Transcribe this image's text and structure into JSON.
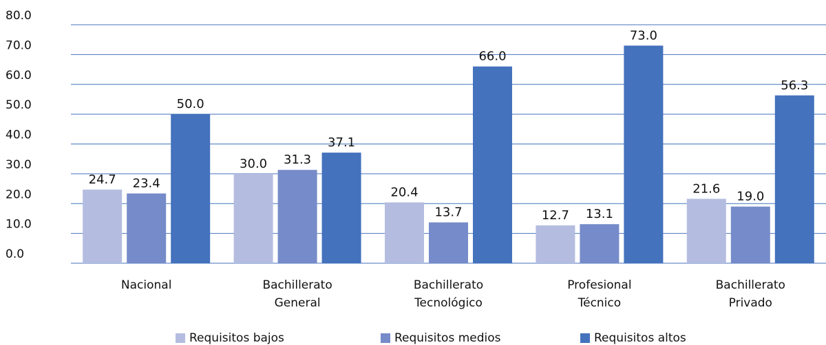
{
  "chart_data": {
    "type": "bar",
    "categories": [
      "Nacional",
      "Bachillerato General",
      "Bachillerato Tecnológico",
      "Profesional Técnico",
      "Bachillerato Privado"
    ],
    "series": [
      {
        "name": "Requisitos bajos",
        "color": "#b4bde0",
        "values": [
          24.7,
          30.0,
          20.4,
          12.7,
          21.6
        ],
        "value_labels": [
          "24.7",
          "30.0",
          "20.4",
          "12.7",
          "21.6"
        ]
      },
      {
        "name": "Requisitos medios",
        "color": "#768bc9",
        "values": [
          23.4,
          31.3,
          13.7,
          13.1,
          19.0
        ],
        "value_labels": [
          "23.4",
          "31.3",
          "13.7",
          "13.1",
          "19.0"
        ]
      },
      {
        "name": "Requisitos altos",
        "color": "#4472bd",
        "values": [
          50.0,
          37.1,
          66.0,
          73.0,
          56.3
        ],
        "value_labels": [
          "50.0",
          "37.1",
          "66.0",
          "73.0",
          "56.3"
        ]
      }
    ],
    "ylim": [
      0,
      80
    ],
    "yticks": [
      {
        "value": 0,
        "label": "0.0"
      },
      {
        "value": 10,
        "label": "10.0"
      },
      {
        "value": 20,
        "label": "20.0"
      },
      {
        "value": 30,
        "label": "30.0"
      },
      {
        "value": 40,
        "label": "40.0"
      },
      {
        "value": 50,
        "label": "50.0"
      },
      {
        "value": 60,
        "label": "60.0"
      },
      {
        "value": 70,
        "label": "70.0"
      },
      {
        "value": 80,
        "label": "80.0"
      }
    ],
    "grid": true,
    "legend": "bottom"
  }
}
